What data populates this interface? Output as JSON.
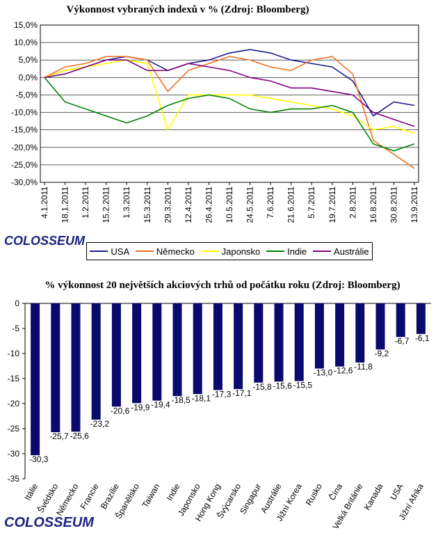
{
  "logo_text": "COLOSSEUM",
  "chart_data": [
    {
      "type": "line",
      "title": "Výkonnost vybraných indexů v % (Zdroj: Bloomberg)",
      "ylim": [
        -30,
        15
      ],
      "y_ticks": [
        "15,0%",
        "10,0%",
        "5,0%",
        "0,0%",
        "-5,0%",
        "-10,0%",
        "-15,0%",
        "-20,0%",
        "-25,0%",
        "-30,0%"
      ],
      "x_ticks": [
        "4.1.2011",
        "18.1.2011",
        "1.2.2011",
        "15.2.2011",
        "1.3.2011",
        "15.3.2011",
        "29.3.2011",
        "12.4.2011",
        "26.4.2011",
        "10.5.2011",
        "24.5.2011",
        "7.6.2011",
        "21.6.2011",
        "5.7.2011",
        "19.7.2011",
        "2.8.2011",
        "16.8.2011",
        "30.8.2011",
        "13.9.2011"
      ],
      "series": [
        {
          "name": "USA",
          "color": "#1a1a8c",
          "values": [
            0,
            2,
            3,
            5,
            6,
            5,
            2,
            4,
            5,
            7,
            8,
            7,
            5,
            4,
            3,
            -1,
            -11,
            -7,
            -8
          ]
        },
        {
          "name": "Německo",
          "color": "#f07020",
          "values": [
            0,
            3,
            4,
            6,
            6,
            5,
            -4,
            2,
            4,
            6,
            5,
            3,
            2,
            5,
            6,
            1,
            -18,
            -22,
            -26
          ]
        },
        {
          "name": "Japonsko",
          "color": "#ffff00",
          "values": [
            0,
            2,
            3,
            4,
            5,
            4,
            -15,
            -5,
            -5,
            -5,
            -5,
            -6,
            -7,
            -8,
            -9,
            -11,
            -15,
            -14,
            -16
          ]
        },
        {
          "name": "Indie",
          "color": "#008000",
          "values": [
            0,
            -7,
            -9,
            -11,
            -13,
            -11,
            -8,
            -6,
            -5,
            -6,
            -9,
            -10,
            -9,
            -9,
            -8,
            -10,
            -19,
            -21,
            -19
          ]
        },
        {
          "name": "Austrálie",
          "color": "#800080",
          "values": [
            0,
            1,
            3,
            5,
            5,
            2,
            2,
            4,
            3,
            2,
            0,
            -1,
            -3,
            -3,
            -4,
            -5,
            -10,
            -12,
            -14
          ]
        }
      ]
    },
    {
      "type": "bar",
      "title": "% výkonnost 20 největších akciových trhů od počátku roku (Zdroj: Bloomberg)",
      "ylim": [
        -35,
        0
      ],
      "y_ticks": [
        "0",
        "-5",
        "-10",
        "-15",
        "-20",
        "-25",
        "-30",
        "-35"
      ],
      "categories": [
        "Itálie",
        "Švédsko",
        "Německo",
        "Francie",
        "Brazílie",
        "Španělsko",
        "Taiwan",
        "Indie",
        "Japonsko",
        "Hong Kong",
        "Švýcarsko",
        "Singapur",
        "Austrálie",
        "Jižní Korea",
        "Rusko",
        "Čína",
        "Velká Británie",
        "Kanada",
        "USA",
        "Jižní Afrika"
      ],
      "values": [
        -30.3,
        -25.7,
        -25.6,
        -23.2,
        -20.6,
        -19.9,
        -19.4,
        -18.5,
        -18.1,
        -17.3,
        -17.1,
        -15.8,
        -15.6,
        -15.5,
        -13.0,
        -12.6,
        -11.8,
        -9.2,
        -6.7,
        -6.1
      ],
      "labels": [
        "-30,3",
        "-25,7",
        "-25,6",
        "-23,2",
        "-20,6",
        "-19,9",
        "-19,4",
        "-18,5",
        "-18,1",
        "-17,3",
        "-17,1",
        "-15,8",
        "-15,6",
        "-15,5",
        "-13,0",
        "-12,6",
        "-11,8",
        "-9,2",
        "-6,7",
        "-6,1"
      ],
      "bar_color": "#0a0a6e"
    }
  ]
}
